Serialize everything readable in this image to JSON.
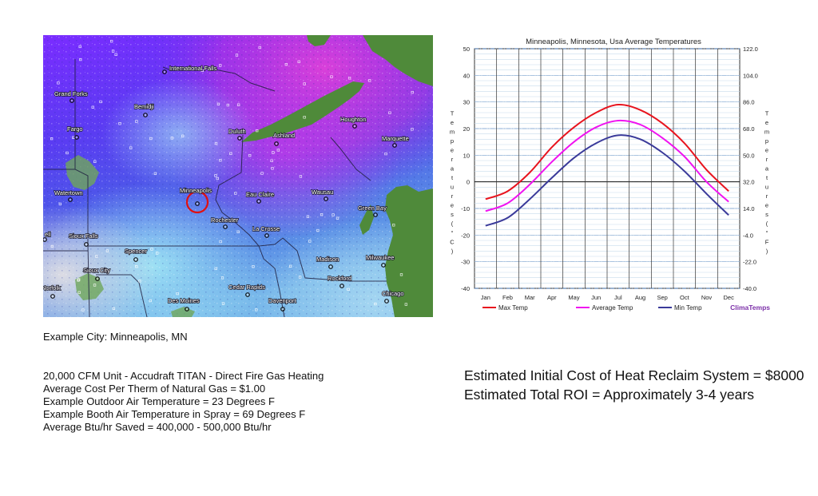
{
  "map": {
    "cities": [
      {
        "name": "International Falls"
      },
      {
        "name": "Grand Forks"
      },
      {
        "name": "Bemidji"
      },
      {
        "name": "Fargo"
      },
      {
        "name": "Duluth"
      },
      {
        "name": "Ashland"
      },
      {
        "name": "Houghton"
      },
      {
        "name": "Marquette"
      },
      {
        "name": "Watertown"
      },
      {
        "name": "Minneapolis"
      },
      {
        "name": "Eau Claire"
      },
      {
        "name": "Wausau"
      },
      {
        "name": "Green Bay"
      },
      {
        "name": "Rochester"
      },
      {
        "name": "La Crosse"
      },
      {
        "name": "Sioux Falls"
      },
      {
        "name": "Spencer"
      },
      {
        "name": "Madison"
      },
      {
        "name": "Milwaukee"
      },
      {
        "name": "Sioux City"
      },
      {
        "name": "Norfolk"
      },
      {
        "name": "Cedar Rapids"
      },
      {
        "name": "Rockford"
      },
      {
        "name": "Chicago"
      },
      {
        "name": "Des Moines"
      },
      {
        "name": "Davenport"
      },
      {
        "name": "ell"
      }
    ]
  },
  "caption": "Example City: Minneapolis, MN",
  "specs": [
    "20,000 CFM Unit - Accudraft TITAN - Direct Fire Gas Heating",
    "Average Cost Per Therm of Natural Gas = $1.00",
    "Example Outdoor Air Temperature = 23 Degrees F",
    "Example Booth Air Temperature in Spray = 69 Degrees F",
    "Average Btu/hr Saved = 400,000 - 500,000 Btu/hr"
  ],
  "roi": [
    "Estimated Initial Cost of Heat Reclaim System = $8000",
    "Estimated Total ROI = Approximately 3-4 years"
  ],
  "chart_data": {
    "type": "line",
    "title": "Minneapolis, Minnesota, Usa Average Temperatures",
    "left_axis_label": "Temperatures (°C)",
    "right_axis_label": "Temperatures (°F)",
    "categories": [
      "Jan",
      "Feb",
      "Mar",
      "Apr",
      "May",
      "Jun",
      "Jul",
      "Aug",
      "Sep",
      "Oct",
      "Nov",
      "Dec"
    ],
    "ylim": [
      -40,
      50
    ],
    "yticks_left": [
      "50",
      "40",
      "30",
      "20",
      "10",
      "0",
      "-10",
      "-20",
      "-30",
      "-40"
    ],
    "yticks_right": [
      "122.0",
      "104.0",
      "86.0",
      "68.0",
      "50.0",
      "32.0",
      "14.0",
      "-4.0",
      "-22.0",
      "-40.0"
    ],
    "grid": true,
    "legend_position": "bottom",
    "brand": "ClimaTemps",
    "series": [
      {
        "name": "Max Temp",
        "color": "#e8141e",
        "values": [
          -6.5,
          -3.5,
          3.5,
          13,
          20.5,
          26,
          29,
          27,
          22,
          14.5,
          4.5,
          -3.5
        ]
      },
      {
        "name": "Average Temp",
        "color": "#f013f0",
        "values": [
          -11,
          -8,
          -1,
          7.5,
          15,
          20.5,
          23,
          21.5,
          16.5,
          9.5,
          0,
          -7.5
        ]
      },
      {
        "name": "Min Temp",
        "color": "#3a3a9a",
        "values": [
          -16.5,
          -13.5,
          -6.5,
          1.5,
          9,
          14.5,
          17.5,
          16,
          11,
          4,
          -4.5,
          -12.5
        ]
      }
    ]
  }
}
